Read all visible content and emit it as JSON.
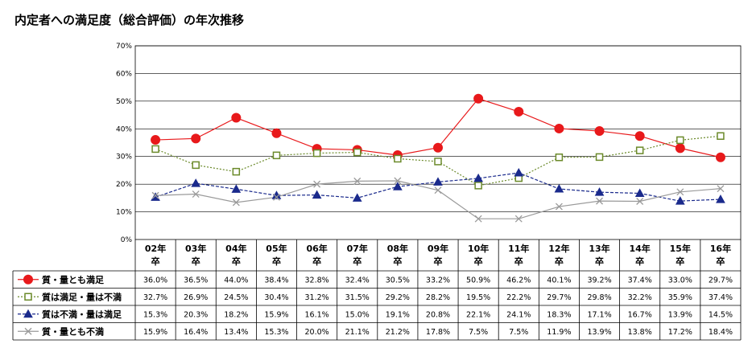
{
  "title": "内定者への満足度（総合評価）の年次推移",
  "colors": {
    "s1": "#e8191b",
    "s2": "#6b8a2a",
    "s3": "#1a2a8c",
    "s4": "#9a9a9a"
  },
  "chart_data": {
    "type": "line",
    "title": "内定者への満足度（総合評価）の年次推移",
    "xlabel": "",
    "ylabel": "",
    "ylim": [
      0,
      70
    ],
    "yticks": [
      "0%",
      "10%",
      "20%",
      "30%",
      "40%",
      "50%",
      "60%",
      "70%"
    ],
    "grid": true,
    "legend": "data-table-left",
    "categories": [
      "02年\n卒",
      "03年\n卒",
      "04年\n卒",
      "05年\n卒",
      "06年\n卒",
      "07年\n卒",
      "08年\n卒",
      "09年\n卒",
      "10年\n卒",
      "11年\n卒",
      "12年\n卒",
      "13年\n卒",
      "14年\n卒",
      "15年\n卒",
      "16年\n卒"
    ],
    "series": [
      {
        "name": "質・量とも満足",
        "color": "#e8191b",
        "marker": "circle",
        "line": "solid",
        "values": [
          36.0,
          36.5,
          44.0,
          38.4,
          32.8,
          32.4,
          30.5,
          33.2,
          50.9,
          46.2,
          40.1,
          39.2,
          37.4,
          33.0,
          29.7
        ],
        "labels": [
          "36.0%",
          "36.5%",
          "44.0%",
          "38.4%",
          "32.8%",
          "32.4%",
          "30.5%",
          "33.2%",
          "50.9%",
          "46.2%",
          "40.1%",
          "39.2%",
          "37.4%",
          "33.0%",
          "29.7%"
        ]
      },
      {
        "name": "質は満足・量は不満",
        "color": "#6b8a2a",
        "marker": "square",
        "line": "dotted",
        "values": [
          32.7,
          26.9,
          24.5,
          30.4,
          31.2,
          31.5,
          29.2,
          28.2,
          19.5,
          22.2,
          29.7,
          29.8,
          32.2,
          35.9,
          37.4
        ],
        "labels": [
          "32.7%",
          "26.9%",
          "24.5%",
          "30.4%",
          "31.2%",
          "31.5%",
          "29.2%",
          "28.2%",
          "19.5%",
          "22.2%",
          "29.7%",
          "29.8%",
          "32.2%",
          "35.9%",
          "37.4%"
        ]
      },
      {
        "name": "質は不満・量は満足",
        "color": "#1a2a8c",
        "marker": "triangle",
        "line": "dashed",
        "values": [
          15.3,
          20.3,
          18.2,
          15.9,
          16.1,
          15.0,
          19.1,
          20.8,
          22.1,
          24.1,
          18.3,
          17.1,
          16.7,
          13.9,
          14.5
        ],
        "labels": [
          "15.3%",
          "20.3%",
          "18.2%",
          "15.9%",
          "16.1%",
          "15.0%",
          "19.1%",
          "20.8%",
          "22.1%",
          "24.1%",
          "18.3%",
          "17.1%",
          "16.7%",
          "13.9%",
          "14.5%"
        ]
      },
      {
        "name": "質・量とも不満",
        "color": "#9a9a9a",
        "marker": "cross",
        "line": "solid",
        "values": [
          15.9,
          16.4,
          13.4,
          15.3,
          20.0,
          21.1,
          21.2,
          17.8,
          7.5,
          7.5,
          11.9,
          13.9,
          13.8,
          17.2,
          18.4
        ],
        "labels": [
          "15.9%",
          "16.4%",
          "13.4%",
          "15.3%",
          "20.0%",
          "21.1%",
          "21.2%",
          "17.8%",
          "7.5%",
          "7.5%",
          "11.9%",
          "13.9%",
          "13.8%",
          "17.2%",
          "18.4%"
        ]
      }
    ]
  }
}
